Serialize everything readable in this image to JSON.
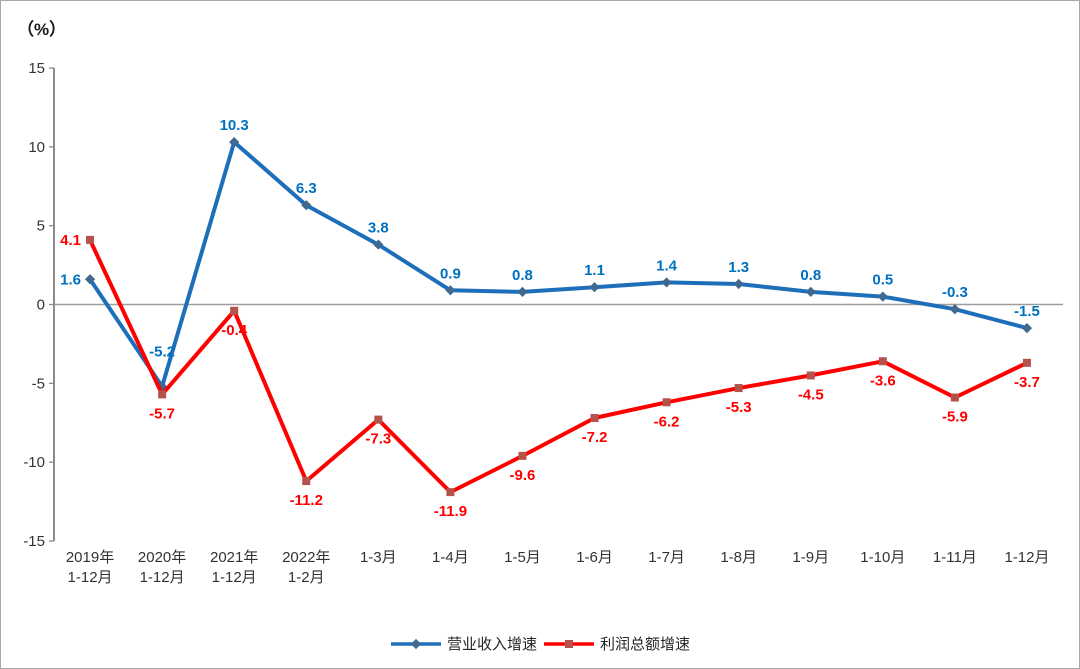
{
  "chart_data": {
    "type": "line",
    "title": "",
    "ylabel": "（%）",
    "xlabel": "",
    "ylim": [
      -15,
      15
    ],
    "yticks": [
      15,
      10,
      5,
      0,
      -5,
      -10,
      -15
    ],
    "grid": "zero-line-only",
    "legend_position": "bottom",
    "categories": [
      "2019年|1-12月",
      "2020年|1-12月",
      "2021年|1-12月",
      "2022年|1-2月",
      "1-3月",
      "1-4月",
      "1-5月",
      "1-6月",
      "1-7月",
      "1-8月",
      "1-9月",
      "1-10月",
      "1-11月",
      "1-12月"
    ],
    "series": [
      {
        "name": "营业收入增速",
        "marker": "diamond",
        "line_color": "#1e6fba",
        "marker_color": "#41688f",
        "label_color": "#0070c0",
        "values": [
          1.6,
          -5.2,
          10.3,
          6.3,
          3.8,
          0.9,
          0.8,
          1.1,
          1.4,
          1.3,
          0.8,
          0.5,
          -0.3,
          -1.5
        ]
      },
      {
        "name": "利润总额增速",
        "marker": "square",
        "line_color": "#ff0000",
        "marker_color": "#b5524c",
        "label_color": "#ff0000",
        "values": [
          4.1,
          -5.7,
          -0.4,
          -11.2,
          -7.3,
          -11.9,
          -9.6,
          -7.2,
          -6.2,
          -5.3,
          -4.5,
          -3.6,
          -5.9,
          -3.7
        ]
      }
    ]
  },
  "axis_style": {
    "axis_line_color": "#8c8c8c",
    "zero_line_color": "#9d9d9d",
    "tick_text_color": "#333333"
  }
}
